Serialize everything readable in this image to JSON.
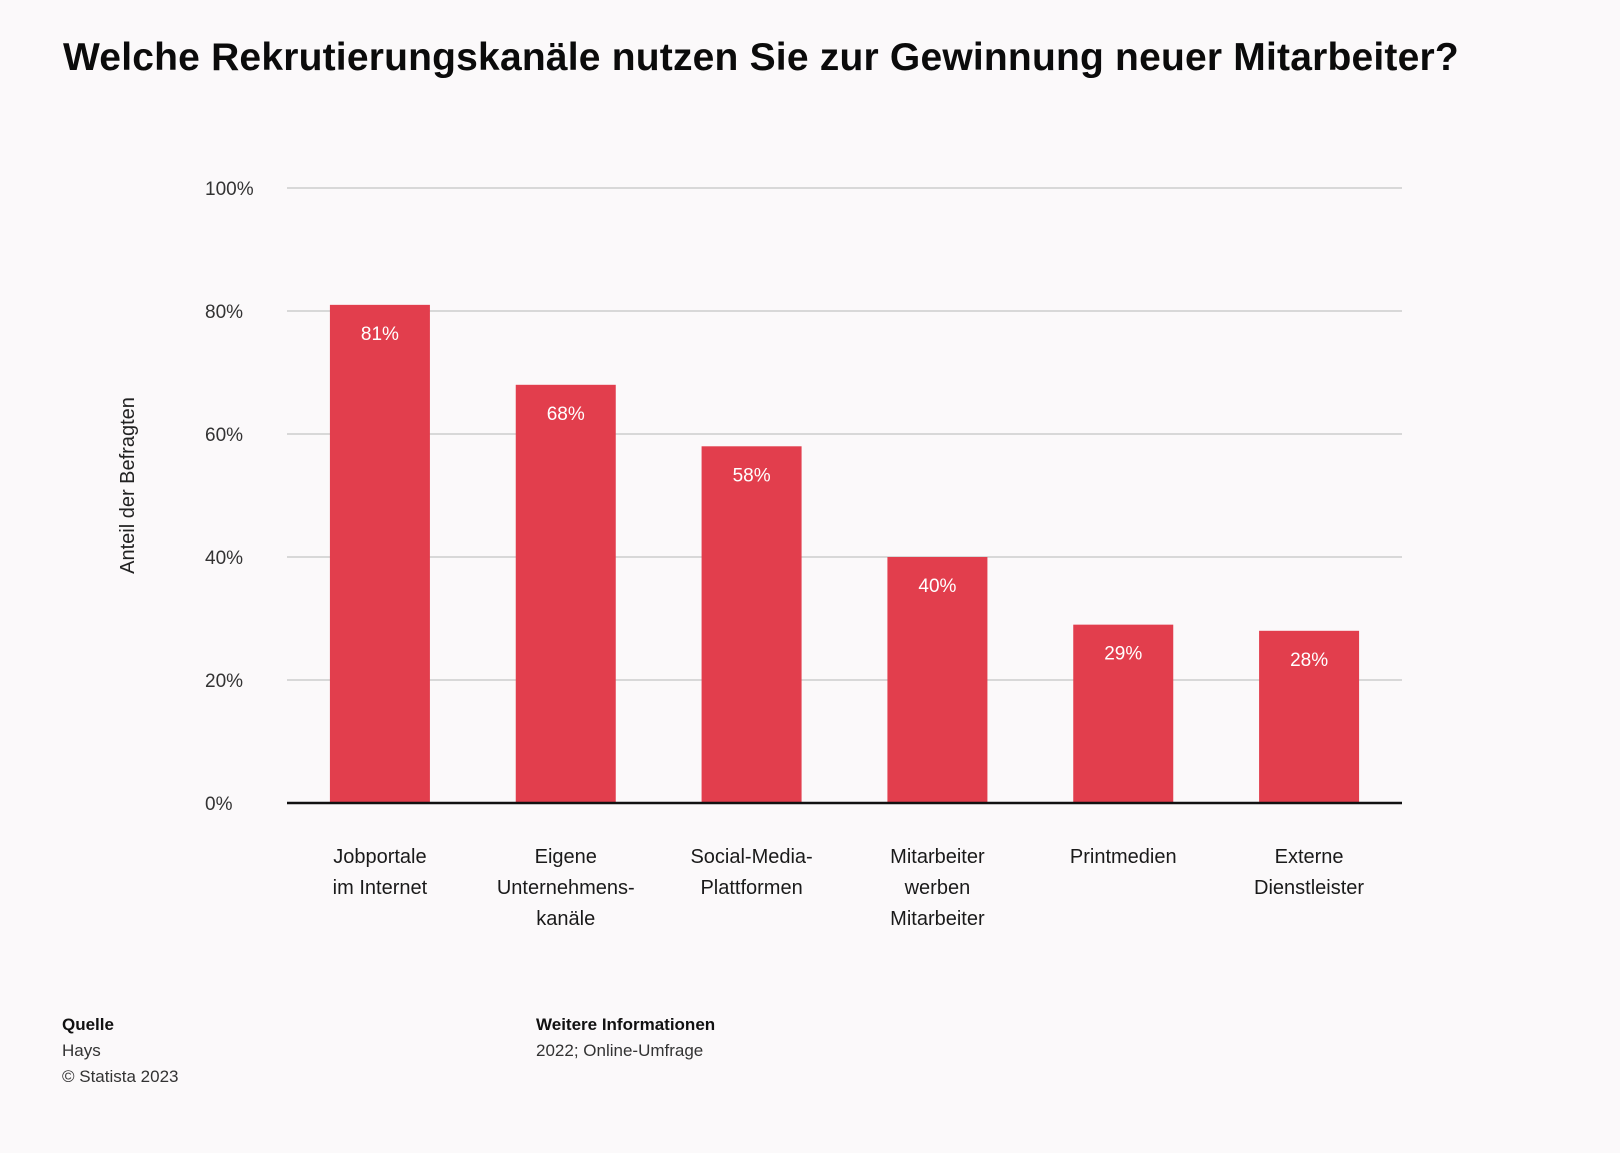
{
  "title": "Welche Rekrutierungskanäle nutzen Sie zur Gewinnung neuer Mitarbeiter?",
  "footer": {
    "source_heading": "Quelle",
    "source_name": "Hays",
    "copyright": "© Statista 2023",
    "info_heading": "Weitere Informationen",
    "info_text": "2022; Online-Umfrage"
  },
  "colors": {
    "bar": "#e23e4d",
    "bar_label": "#ffffff",
    "grid": "#c4c4c4",
    "baseline": "#111111",
    "background": "#fbf9fa"
  },
  "chart_data": {
    "type": "bar",
    "title": "Welche Rekrutierungskanäle nutzen Sie zur Gewinnung neuer Mitarbeiter?",
    "ylabel": "Anteil der Befragten",
    "xlabel": "",
    "ylim": [
      0,
      100
    ],
    "yticks": [
      0,
      20,
      40,
      60,
      80,
      100
    ],
    "ytick_labels": [
      "0%",
      "20%",
      "40%",
      "60%",
      "80%",
      "100%"
    ],
    "grid": true,
    "legend": "none",
    "categories": [
      [
        "Jobportale",
        "im Internet"
      ],
      [
        "Eigene",
        "Unternehmens-",
        "kanäle"
      ],
      [
        "Social-Media-",
        "Plattformen"
      ],
      [
        "Mitarbeiter",
        "werben",
        "Mitarbeiter"
      ],
      [
        "Printmedien"
      ],
      [
        "Externe",
        "Dienstleister"
      ]
    ],
    "values": [
      81,
      68,
      58,
      40,
      29,
      28
    ],
    "data_labels": [
      "81%",
      "68%",
      "58%",
      "40%",
      "29%",
      "28%"
    ]
  }
}
